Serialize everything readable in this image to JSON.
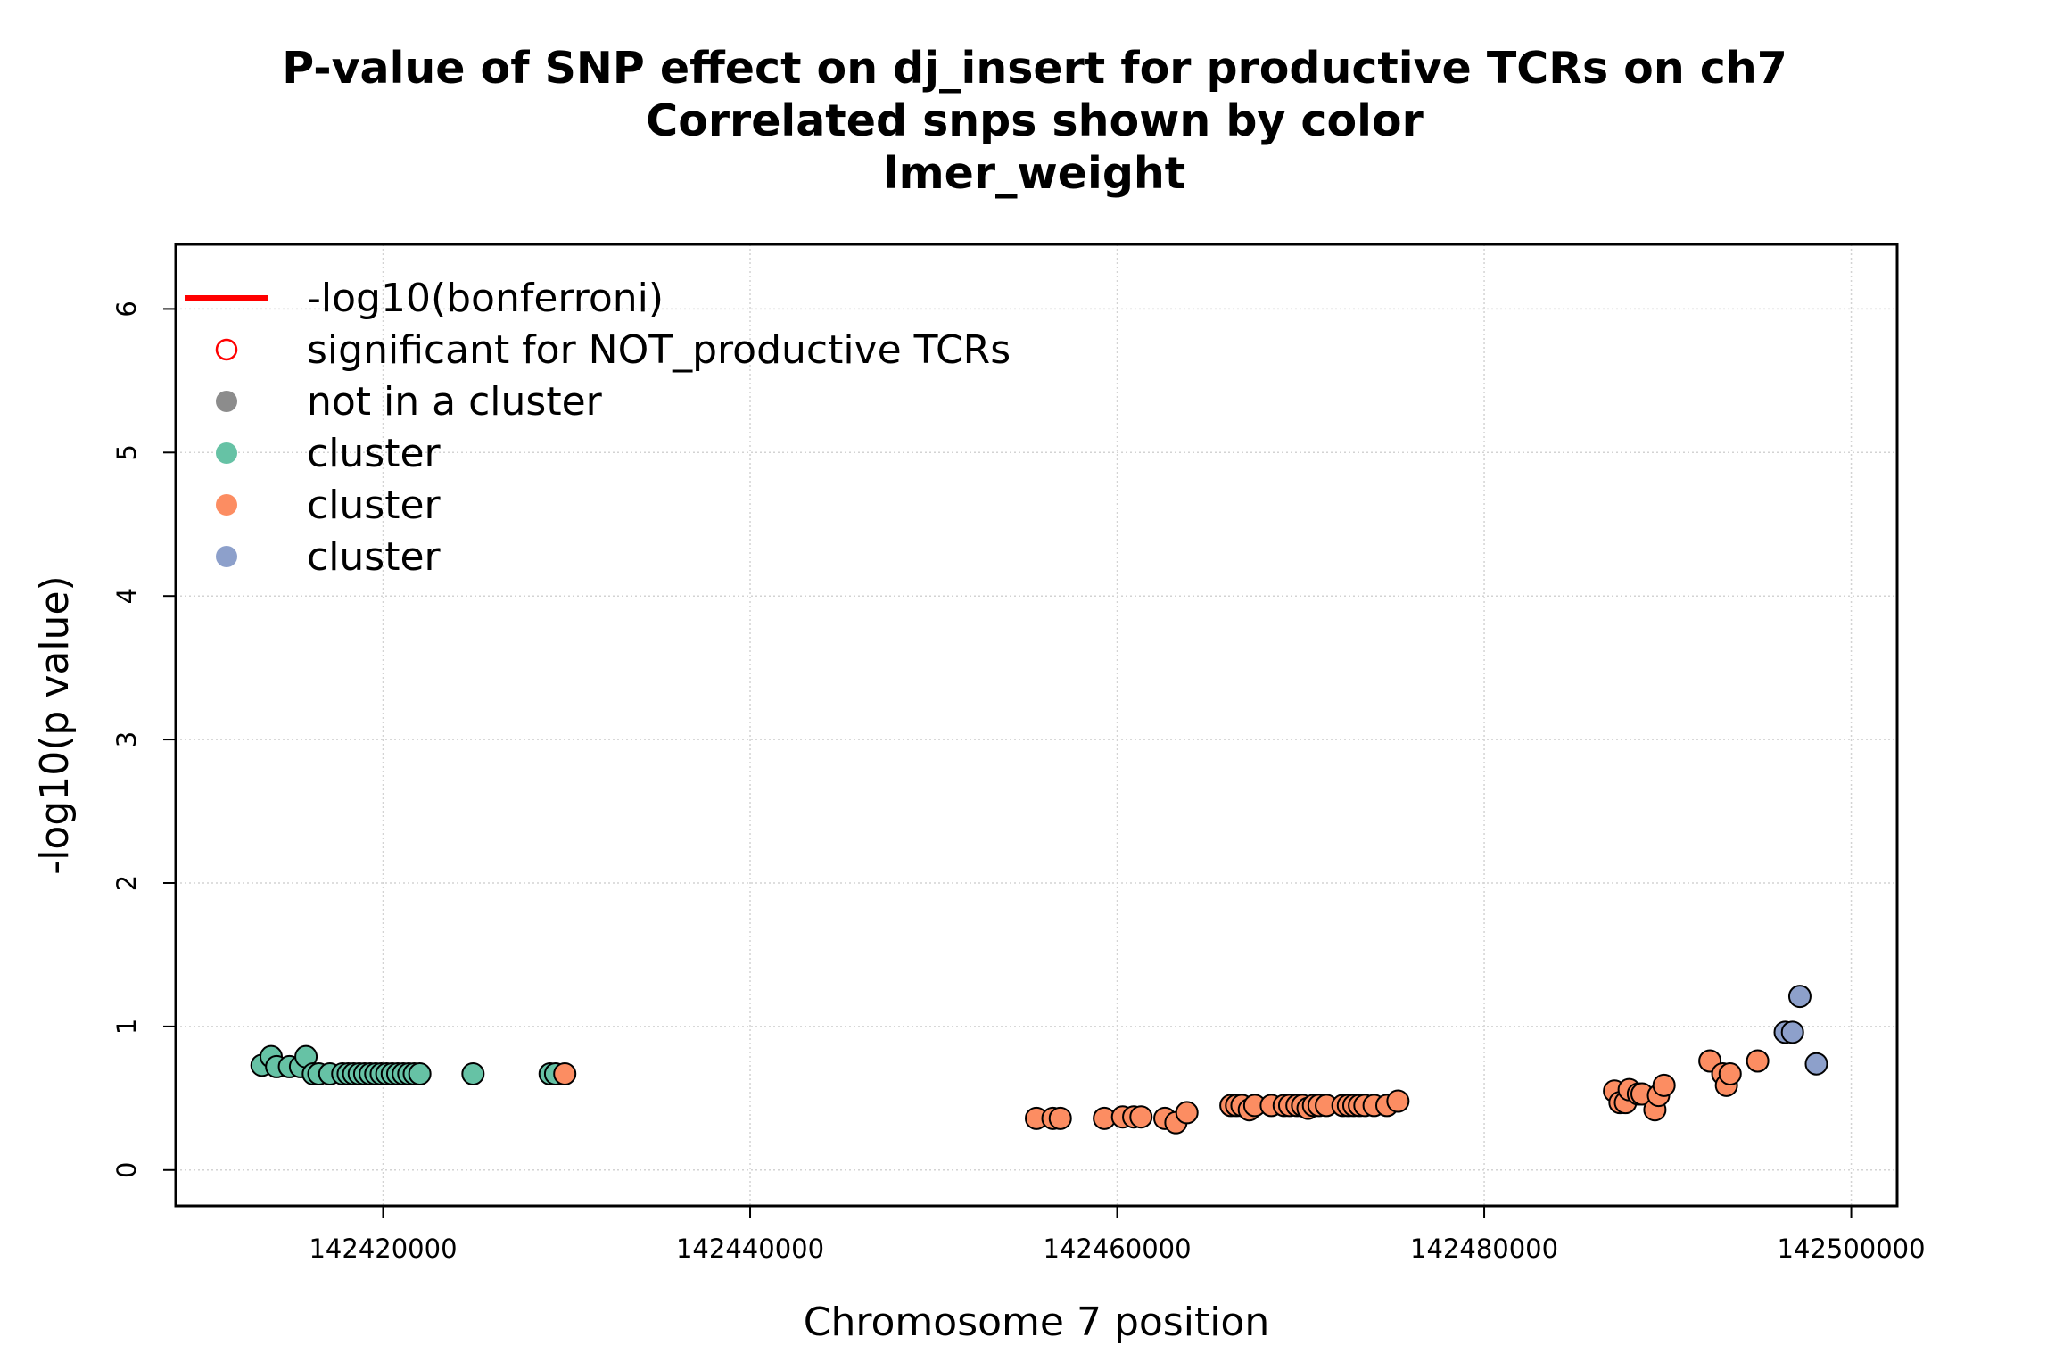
{
  "chart_data": {
    "type": "scatter",
    "title_lines": [
      "P-value of SNP effect on dj_insert for productive TCRs on ch7",
      "Correlated snps shown by color",
      "lmer_weight"
    ],
    "xlabel": "Chromosome 7 position",
    "ylabel": "-log10(p value)",
    "xlim": [
      142408700,
      142502500
    ],
    "ylim": [
      -0.25,
      6.45
    ],
    "xticks": [
      142420000,
      142440000,
      142460000,
      142480000,
      142500000
    ],
    "xtick_labels": [
      "142420000",
      "142440000",
      "142460000",
      "142480000",
      "142500000"
    ],
    "yticks": [
      0,
      1,
      2,
      3,
      4,
      5,
      6
    ],
    "ytick_labels": [
      "0",
      "1",
      "2",
      "3",
      "4",
      "5",
      "6"
    ],
    "grid": true,
    "legend_position": "top-left",
    "legend": [
      {
        "label": "-log10(bonferroni)",
        "kind": "line",
        "color": "#ff0000"
      },
      {
        "label": "significant for NOT_productive TCRs",
        "kind": "open-circle",
        "color": "#ff0000"
      },
      {
        "label": "not in a cluster",
        "kind": "point",
        "color": "#8c8c8c"
      },
      {
        "label": "cluster",
        "kind": "point",
        "color": "#66c2a5"
      },
      {
        "label": "cluster",
        "kind": "point",
        "color": "#fc8d62"
      },
      {
        "label": "cluster",
        "kind": "point",
        "color": "#8da0cb"
      }
    ],
    "series": [
      {
        "color": "#66c2a5",
        "x": [
          142413400,
          142413900,
          142414200,
          142414900,
          142415500,
          142415800,
          142416200,
          142416500,
          142417100,
          142417800,
          142418100,
          142418400,
          142418700,
          142419000,
          142419300,
          142419600,
          142419900,
          142420200,
          142420500,
          142420800,
          142421100,
          142421400,
          142421700,
          142422000,
          142424900,
          142429100,
          142429400
        ],
        "y": [
          0.73,
          0.79,
          0.72,
          0.72,
          0.72,
          0.79,
          0.67,
          0.67,
          0.67,
          0.67,
          0.67,
          0.67,
          0.67,
          0.67,
          0.67,
          0.67,
          0.67,
          0.67,
          0.67,
          0.67,
          0.67,
          0.67,
          0.67,
          0.67,
          0.67,
          0.67,
          0.67
        ]
      },
      {
        "color": "#fc8d62",
        "x": [
          142429900,
          142455600,
          142456500,
          142456900,
          142459300,
          142460300,
          142460900,
          142461300,
          142462600,
          142463200,
          142463800,
          142466200,
          142466500,
          142466800,
          142467200,
          142467500,
          142468400,
          142469100,
          142469400,
          142469800,
          142470100,
          142470400,
          142470700,
          142471000,
          142471400,
          142472300,
          142472600,
          142472900,
          142473200,
          142473500,
          142474000,
          142474700,
          142475300,
          142487100,
          142487400,
          142487700,
          142487900,
          142488400,
          142488600,
          142489300,
          142489500,
          142489800,
          142492300,
          142493000,
          142493200,
          142493400,
          142494900
        ],
        "y": [
          0.67,
          0.36,
          0.36,
          0.36,
          0.36,
          0.37,
          0.37,
          0.37,
          0.36,
          0.33,
          0.4,
          0.45,
          0.45,
          0.45,
          0.42,
          0.45,
          0.45,
          0.45,
          0.45,
          0.45,
          0.45,
          0.43,
          0.45,
          0.45,
          0.45,
          0.45,
          0.45,
          0.45,
          0.45,
          0.45,
          0.45,
          0.45,
          0.48,
          0.55,
          0.47,
          0.47,
          0.56,
          0.53,
          0.53,
          0.42,
          0.52,
          0.59,
          0.76,
          0.67,
          0.59,
          0.67,
          0.76
        ]
      },
      {
        "color": "#8da0cb",
        "x": [
          142496400,
          142496800,
          142497200,
          142498100
        ],
        "y": [
          0.96,
          0.96,
          1.21,
          0.74
        ]
      }
    ]
  }
}
